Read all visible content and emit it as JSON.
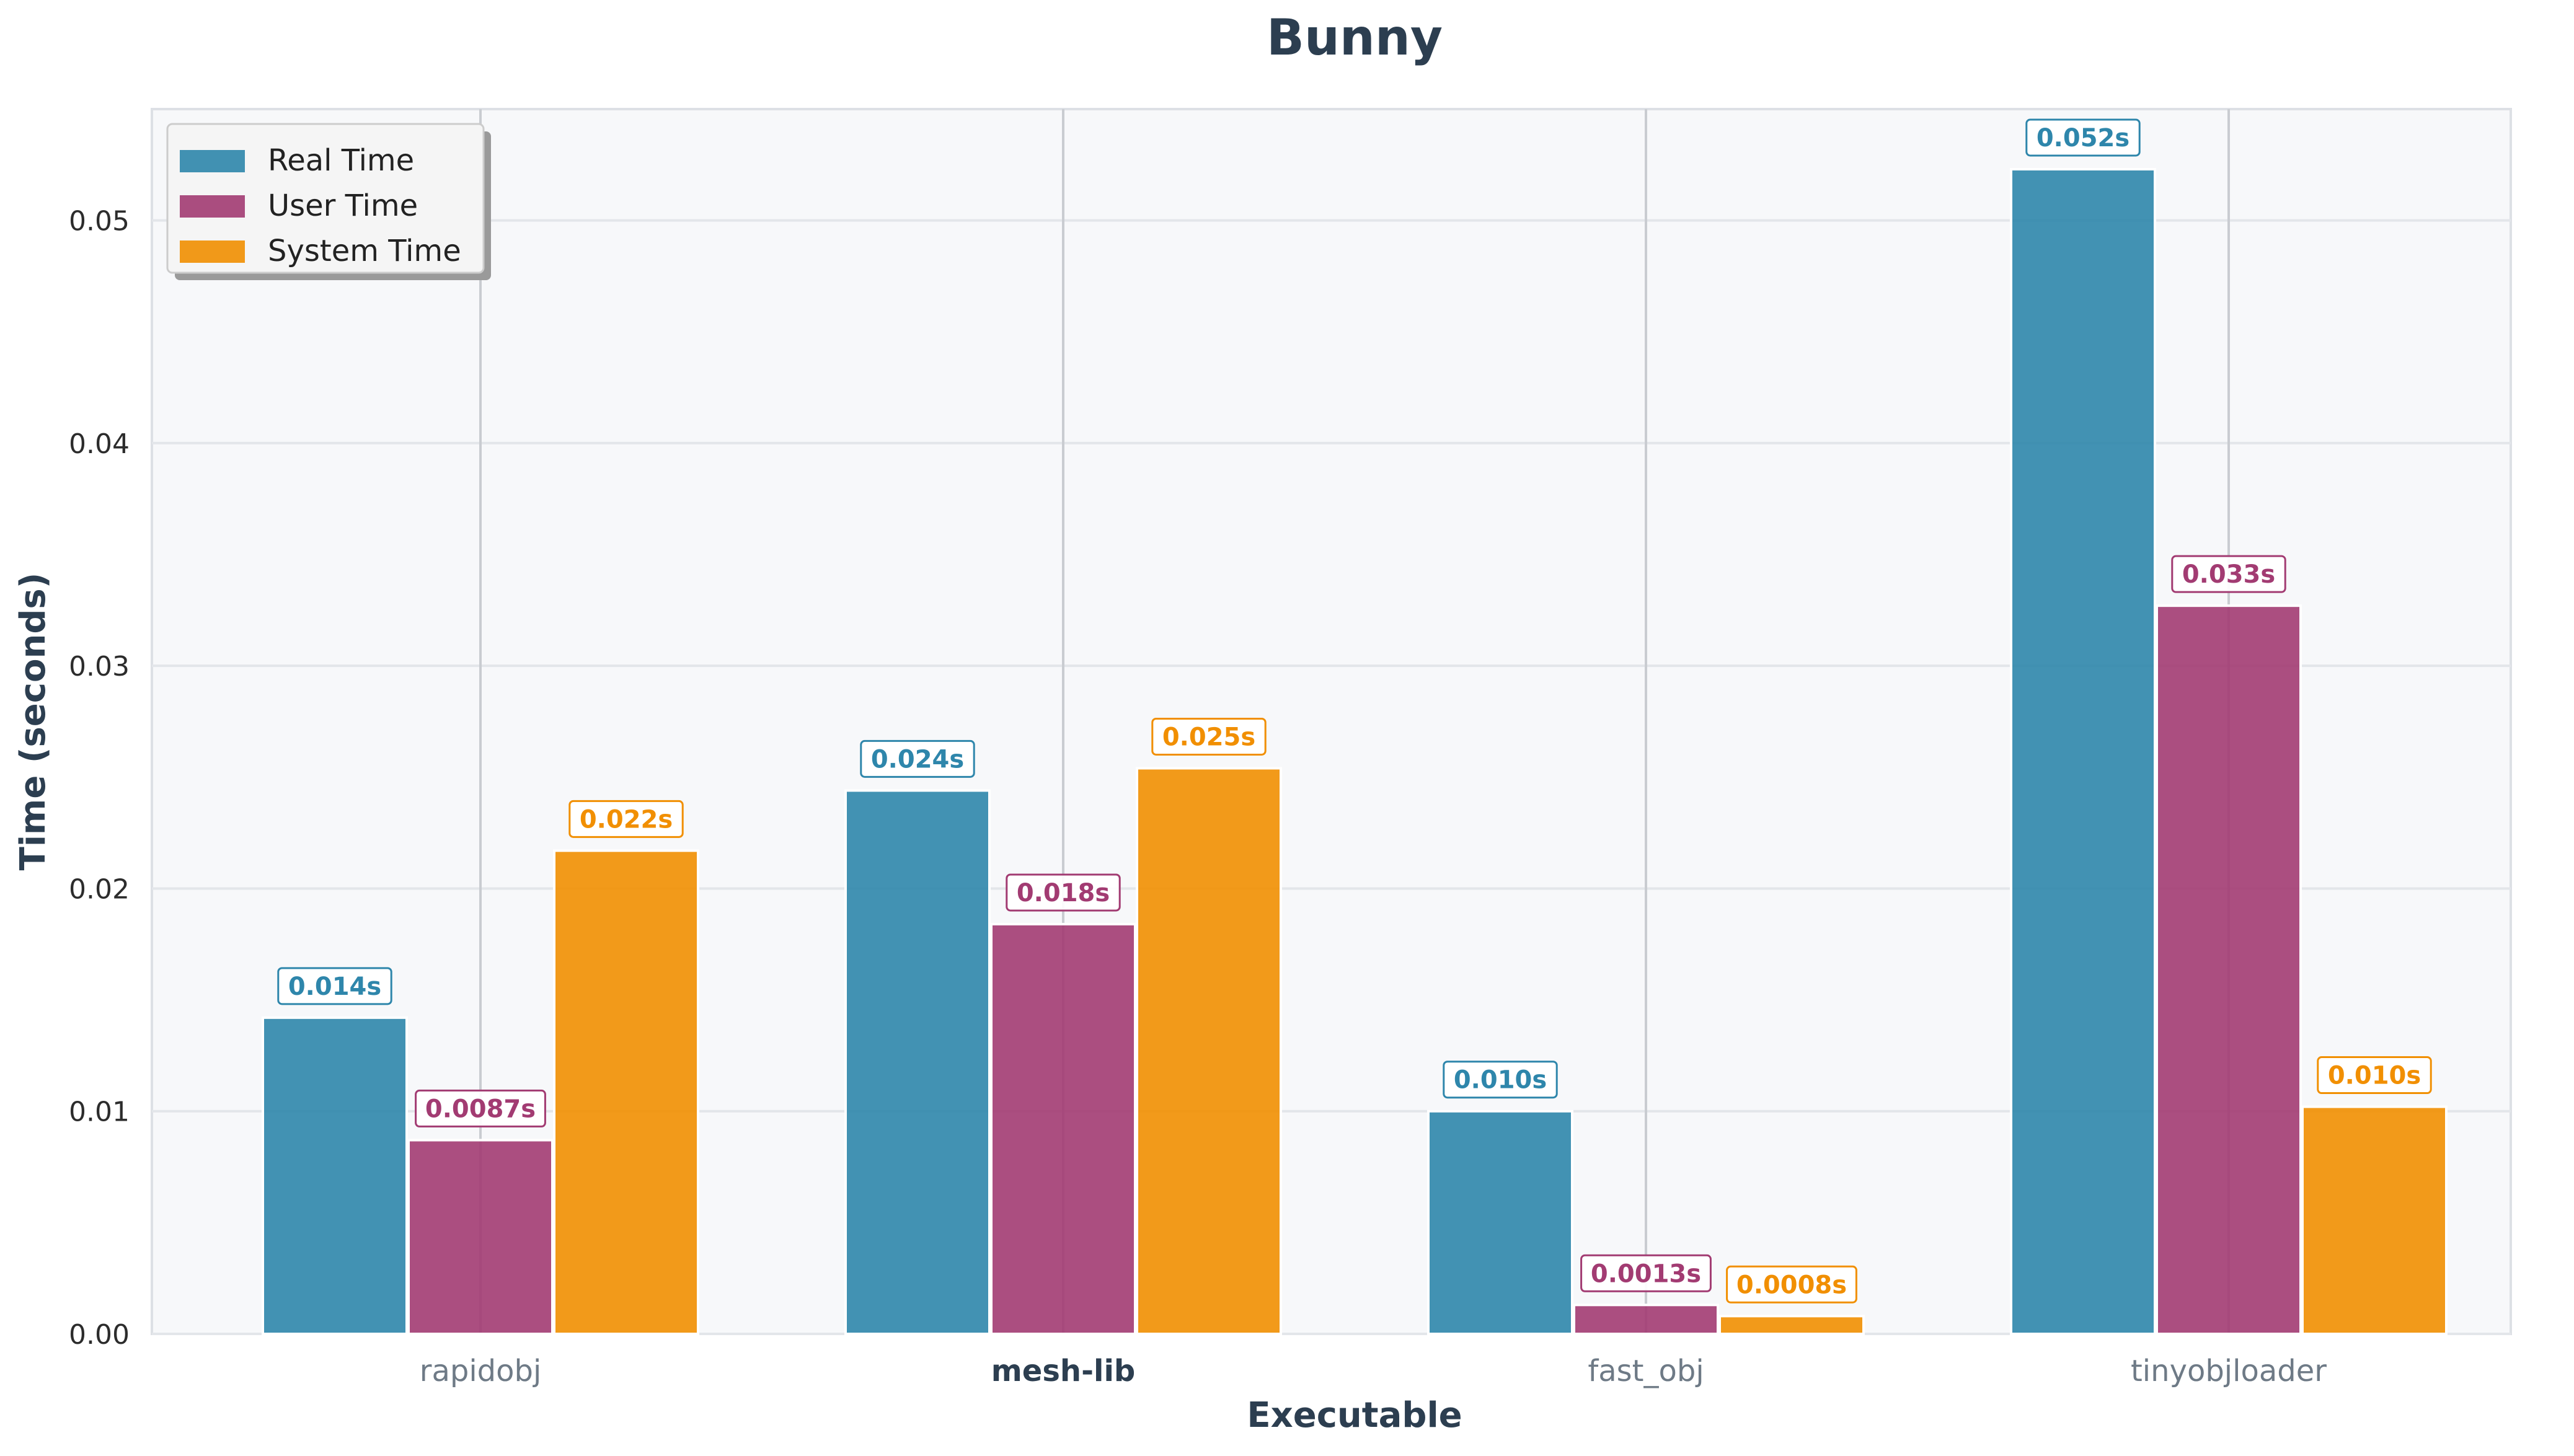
{
  "chart_data": {
    "type": "bar",
    "title": "Bunny",
    "xlabel": "Executable",
    "ylabel": "Time (seconds)",
    "categories": [
      "rapidobj",
      "mesh-lib",
      "fast_obj",
      "tinyobjloader"
    ],
    "highlighted_category": "mesh-lib",
    "ylim": [
      0,
      0.055
    ],
    "yticks": [
      "0.00",
      "0.01",
      "0.02",
      "0.03",
      "0.04",
      "0.05"
    ],
    "grid": true,
    "legend_position": "top-left",
    "series": [
      {
        "name": "Real Time",
        "color": "#2E86AB",
        "values": [
          0.0142,
          0.0244,
          0.01,
          0.0523
        ],
        "labels": [
          "0.014s",
          "0.024s",
          "0.010s",
          "0.052s"
        ]
      },
      {
        "name": "User Time",
        "color": "#A23B72",
        "values": [
          0.0087,
          0.0184,
          0.0013,
          0.0327
        ],
        "labels": [
          "0.0087s",
          "0.018s",
          "0.0013s",
          "0.033s"
        ]
      },
      {
        "name": "System Time",
        "color": "#F18F01",
        "values": [
          0.0217,
          0.0254,
          0.0008,
          0.0102
        ],
        "labels": [
          "0.022s",
          "0.025s",
          "0.0008s",
          "0.010s"
        ]
      }
    ]
  }
}
